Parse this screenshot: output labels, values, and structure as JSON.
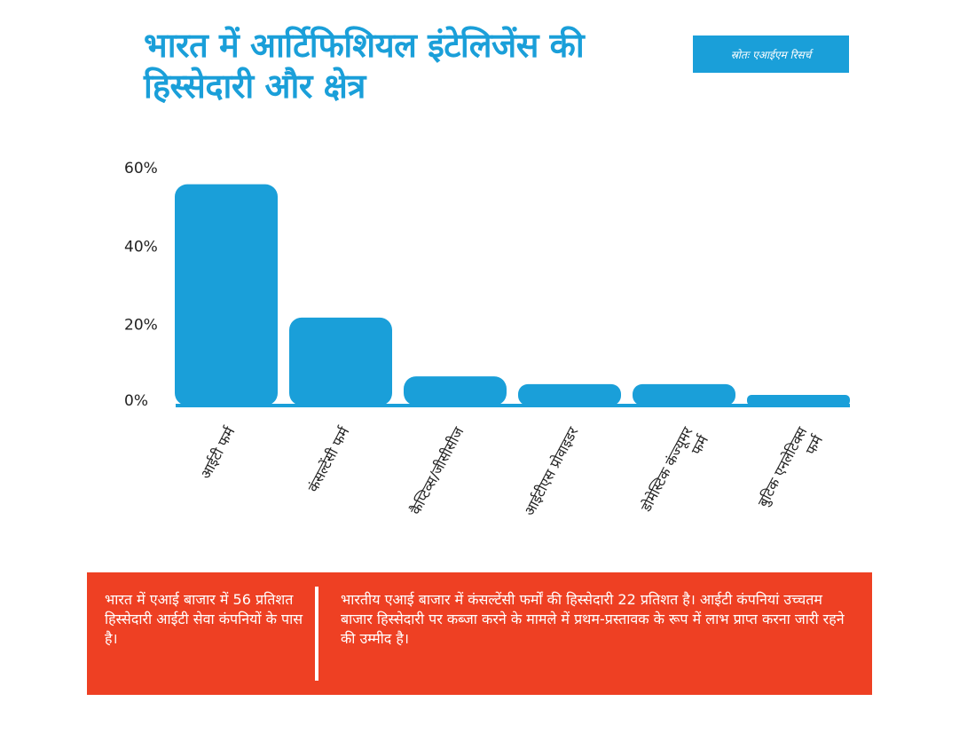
{
  "title": {
    "line1": "भारत में आर्टिफिशियल इंटेलिजेंस की",
    "line2": "हिस्सेदारी और क्षेत्र"
  },
  "source": "स्रोतः एआईएम रिसर्च",
  "colors": {
    "accent": "#1a9fd9",
    "panel": "#ee4023",
    "text": "#222222"
  },
  "chart_data": {
    "type": "bar",
    "categories": [
      [
        "आईटी फर्म"
      ],
      [
        "कंसल्टेंसी फर्म"
      ],
      [
        "कैप्टिव्स/जीसीसीज"
      ],
      [
        "आईटीएस प्रोवाइडर"
      ],
      [
        "डोमेस्टिक कंज्यूमर",
        "फर्म"
      ],
      [
        "बुटिक एनलेटिक्स",
        "फर्म"
      ]
    ],
    "values": [
      56,
      22,
      7,
      5,
      5,
      2
    ],
    "ylim": [
      0,
      60
    ],
    "yticks": [
      {
        "value": 0,
        "label": "0%"
      },
      {
        "value": 20,
        "label": "20%"
      },
      {
        "value": 40,
        "label": "40%"
      },
      {
        "value": 60,
        "label": "60%"
      }
    ],
    "grid": false,
    "legend": "none"
  },
  "info": {
    "left_text": "भारत में एआई बाजार में 56 प्रतिशत हिस्सेदारी आईटी सेवा कंपनियों के पास है।",
    "right_text": "भारतीय एआई बाजार में कंसल्टेंसी फर्मों की हिस्सेदारी 22 प्रतिशत है। आईटी कंपनियां उच्चतम बाजार हिस्सेदारी पर कब्जा करने के मामले में प्रथम-प्रस्तावक के रूप में लाभ प्राप्त करना जारी रहने की उम्मीद है।"
  }
}
